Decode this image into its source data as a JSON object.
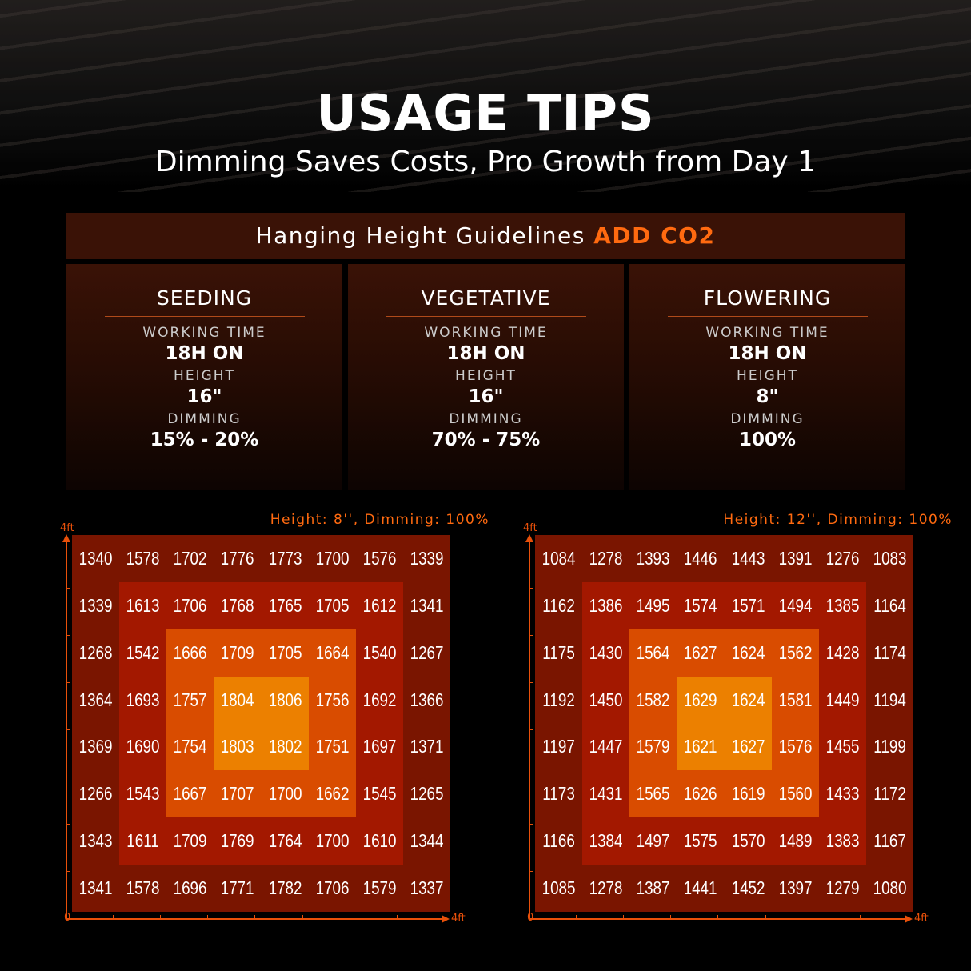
{
  "header": {
    "title": "USAGE TIPS",
    "subtitle": "Dimming Saves Costs, Pro Growth from Day 1"
  },
  "guidelines": {
    "title": "Hanging Height Guidelines",
    "accent": "ADD CO2",
    "accent_color": "#ff6a10",
    "stages": [
      {
        "name": "SEEDING",
        "time_label": "WORKING TIME",
        "time": "18H ON",
        "height_label": "HEIGHT",
        "height": "16\"",
        "dimming_label": "DIMMING",
        "dimming": "15% - 20%"
      },
      {
        "name": "VEGETATIVE",
        "time_label": "WORKING TIME",
        "time": "18H ON",
        "height_label": "HEIGHT",
        "height": "16\"",
        "dimming_label": "DIMMING",
        "dimming": "70% - 75%"
      },
      {
        "name": "FLOWERING",
        "time_label": "WORKING TIME",
        "time": "18H ON",
        "height_label": "HEIGHT",
        "height": "8\"",
        "dimming_label": "DIMMING",
        "dimming": "100%"
      }
    ]
  },
  "zone_colors": [
    "#7a1500",
    "#a31800",
    "#d94c00",
    "#ec8000"
  ],
  "chart_data": [
    {
      "type": "heatmap",
      "title": "Height: 8'', Dimming: 100%",
      "x_axis": {
        "start": "0",
        "end": "4ft"
      },
      "y_axis": {
        "end": "4ft"
      },
      "values": [
        [
          1340,
          1578,
          1702,
          1776,
          1773,
          1700,
          1576,
          1339
        ],
        [
          1339,
          1613,
          1706,
          1768,
          1765,
          1705,
          1612,
          1341
        ],
        [
          1268,
          1542,
          1666,
          1709,
          1705,
          1664,
          1540,
          1267
        ],
        [
          1364,
          1693,
          1757,
          1804,
          1806,
          1756,
          1692,
          1366
        ],
        [
          1369,
          1690,
          1754,
          1803,
          1802,
          1751,
          1697,
          1371
        ],
        [
          1266,
          1543,
          1667,
          1707,
          1700,
          1662,
          1545,
          1265
        ],
        [
          1343,
          1611,
          1709,
          1769,
          1764,
          1700,
          1610,
          1344
        ],
        [
          1341,
          1578,
          1696,
          1771,
          1782,
          1706,
          1579,
          1337
        ]
      ]
    },
    {
      "type": "heatmap",
      "title": "Height: 12'', Dimming: 100%",
      "x_axis": {
        "start": "0",
        "end": "4ft"
      },
      "y_axis": {
        "end": "4ft"
      },
      "values": [
        [
          1084,
          1278,
          1393,
          1446,
          1443,
          1391,
          1276,
          1083
        ],
        [
          1162,
          1386,
          1495,
          1574,
          1571,
          1494,
          1385,
          1164
        ],
        [
          1175,
          1430,
          1564,
          1627,
          1624,
          1562,
          1428,
          1174
        ],
        [
          1192,
          1450,
          1582,
          1629,
          1624,
          1581,
          1449,
          1194
        ],
        [
          1197,
          1447,
          1579,
          1621,
          1627,
          1576,
          1455,
          1199
        ],
        [
          1173,
          1431,
          1565,
          1626,
          1619,
          1560,
          1433,
          1172
        ],
        [
          1166,
          1384,
          1497,
          1575,
          1570,
          1489,
          1383,
          1167
        ],
        [
          1085,
          1278,
          1387,
          1441,
          1452,
          1397,
          1279,
          1080
        ]
      ]
    }
  ]
}
